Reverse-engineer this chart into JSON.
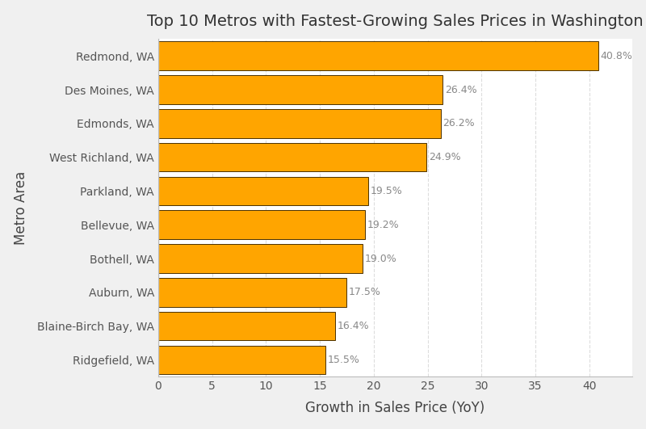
{
  "title": "Top 10 Metros with Fastest-Growing Sales Prices in Washington",
  "xlabel": "Growth in Sales Price (YoY)",
  "ylabel": "Metro Area",
  "categories": [
    "Ridgefield, WA",
    "Blaine-Birch Bay, WA",
    "Auburn, WA",
    "Bothell, WA",
    "Bellevue, WA",
    "Parkland, WA",
    "West Richland, WA",
    "Edmonds, WA",
    "Des Moines, WA",
    "Redmond, WA"
  ],
  "values": [
    15.5,
    16.4,
    17.5,
    19.0,
    19.2,
    19.5,
    24.9,
    26.2,
    26.4,
    40.8
  ],
  "bar_color": "#FFA500",
  "bar_edge_color": "#4A3000",
  "label_color": "#888888",
  "plot_bg_color": "#FFFFFF",
  "fig_bg_color": "#F0F0F0",
  "grid_color": "#DDDDDD",
  "spine_color": "#BBBBBB",
  "xlim": [
    0,
    44
  ],
  "title_fontsize": 14,
  "axis_label_fontsize": 12,
  "tick_fontsize": 10,
  "bar_label_fontsize": 9,
  "bar_height": 0.85
}
